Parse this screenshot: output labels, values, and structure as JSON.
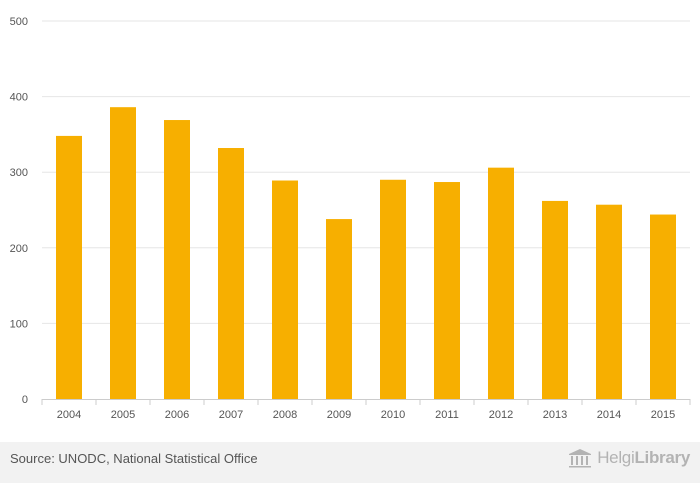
{
  "chart_data": {
    "type": "bar",
    "categories": [
      "2004",
      "2005",
      "2006",
      "2007",
      "2008",
      "2009",
      "2010",
      "2011",
      "2012",
      "2013",
      "2014",
      "2015"
    ],
    "values": [
      348,
      386,
      369,
      332,
      289,
      238,
      290,
      287,
      306,
      262,
      257,
      244
    ],
    "y_ticks": [
      "0",
      "100",
      "200",
      "300",
      "400",
      "500"
    ],
    "ylim": [
      0,
      500
    ],
    "title": "",
    "xlabel": "",
    "ylabel": "",
    "grid": true,
    "legend": "none",
    "bar_color": "#f7af00",
    "grid_color": "#e6e6e6"
  },
  "footer": {
    "source": "Source: UNODC, National Statistical Office",
    "brand_thin": "Helgi",
    "brand_bold": "Library",
    "brand_icon": "library-building-icon"
  }
}
